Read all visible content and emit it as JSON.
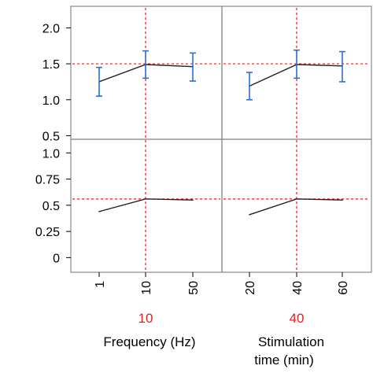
{
  "chart_data": {
    "type": "line",
    "grid": false,
    "colors": {
      "line": "#222222",
      "error_bar": "#2a6fd6",
      "reference": "#dd2222",
      "frame": "#888888"
    },
    "panels": [
      {
        "factor": "Frequency",
        "x_tick_labels": [
          "1",
          "10",
          "50"
        ],
        "selected_value": "10",
        "xlabel_lines": [
          "Frequency (Hz)"
        ]
      },
      {
        "factor": "Stimulation time",
        "x_tick_labels": [
          "20",
          "40",
          "60"
        ],
        "selected_value": "40",
        "xlabel_lines": [
          "Stimulation",
          "time (min)"
        ]
      }
    ],
    "rows": [
      {
        "ylim": [
          0.45,
          2.3
        ],
        "y_ticks": [
          "0.5",
          "1.0",
          "1.5",
          "2.0"
        ],
        "reference_y": 1.5,
        "series": [
          {
            "values": [
              1.25,
              1.49,
              1.46
            ],
            "err_low": [
              1.05,
              1.3,
              1.26
            ],
            "err_high": [
              1.45,
              1.68,
              1.65
            ]
          },
          {
            "values": [
              1.19,
              1.49,
              1.47
            ],
            "err_low": [
              1.0,
              1.3,
              1.25
            ],
            "err_high": [
              1.38,
              1.69,
              1.67
            ]
          }
        ]
      },
      {
        "ylim": [
          -0.14,
          1.13
        ],
        "y_ticks": [
          "0",
          "0.25",
          "0.5",
          "0.75",
          "1.0"
        ],
        "reference_y": 0.56,
        "series": [
          {
            "values": [
              0.44,
              0.56,
              0.55
            ]
          },
          {
            "values": [
              0.41,
              0.56,
              0.55
            ]
          }
        ]
      }
    ]
  }
}
